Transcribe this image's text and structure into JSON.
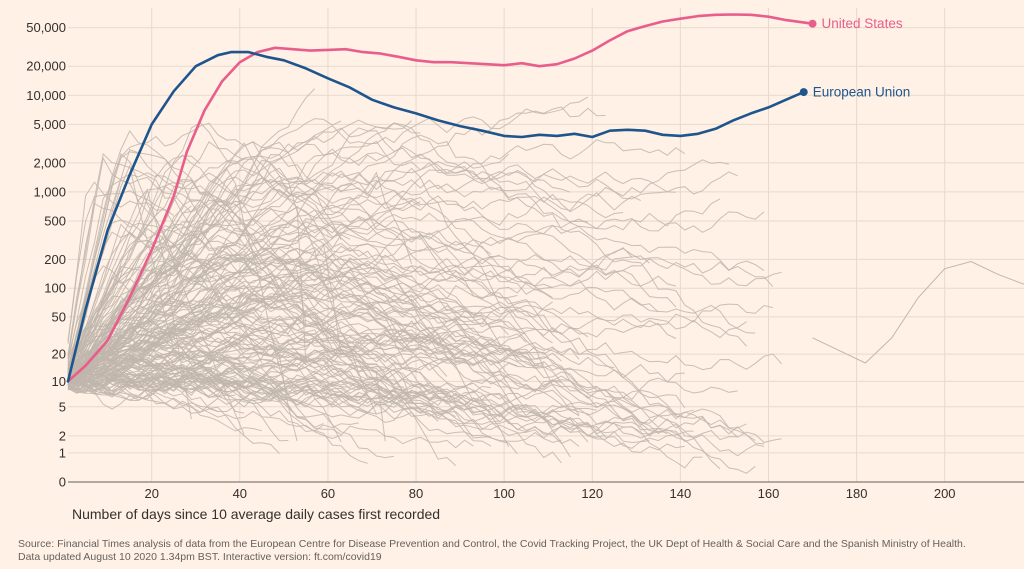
{
  "chart_data": {
    "type": "line",
    "title": "",
    "xlabel": "Number of days since 10 average daily cases first recorded",
    "ylabel": "",
    "y_scale": "log",
    "xlim": [
      1,
      218
    ],
    "ylim": [
      0,
      80000
    ],
    "x_ticks": [
      20,
      40,
      60,
      80,
      100,
      120,
      140,
      160,
      180,
      200
    ],
    "y_ticks": [
      0,
      1,
      2,
      5,
      10,
      20,
      50,
      100,
      200,
      500,
      1000,
      2000,
      5000,
      10000,
      20000,
      50000
    ],
    "y_tick_labels": [
      "0",
      "1",
      "2",
      "5",
      "10",
      "20",
      "50",
      "100",
      "200",
      "500",
      "1,000",
      "2,000",
      "5,000",
      "10,000",
      "20,000",
      "50,000"
    ],
    "series": [
      {
        "name": "United States",
        "color": "#e95d8c",
        "x": [
          1,
          5,
          10,
          15,
          20,
          25,
          28,
          32,
          36,
          40,
          44,
          48,
          52,
          56,
          60,
          64,
          68,
          72,
          76,
          80,
          84,
          88,
          92,
          96,
          100,
          104,
          108,
          112,
          116,
          120,
          124,
          128,
          132,
          136,
          140,
          144,
          148,
          152,
          156,
          160,
          164,
          170
        ],
        "values": [
          10,
          15,
          28,
          80,
          250,
          900,
          2600,
          7000,
          14000,
          22000,
          28000,
          31000,
          30000,
          29000,
          29500,
          30000,
          28000,
          27000,
          25000,
          23000,
          22000,
          22000,
          21500,
          21000,
          20500,
          21500,
          20000,
          21000,
          24000,
          29000,
          37000,
          46000,
          52000,
          58000,
          62000,
          66000,
          68000,
          68500,
          68000,
          65000,
          60000,
          55000
        ]
      },
      {
        "name": "European Union",
        "color": "#1e558c",
        "x": [
          1,
          5,
          10,
          15,
          20,
          25,
          30,
          35,
          38,
          42,
          46,
          50,
          55,
          60,
          65,
          70,
          75,
          80,
          85,
          90,
          95,
          100,
          104,
          108,
          112,
          116,
          120,
          124,
          128,
          132,
          136,
          140,
          144,
          148,
          152,
          156,
          160,
          164,
          168
        ],
        "values": [
          10,
          60,
          400,
          1500,
          5000,
          11000,
          20000,
          26000,
          28000,
          28000,
          25000,
          23000,
          19000,
          15000,
          12000,
          9000,
          7500,
          6500,
          5500,
          4800,
          4300,
          3800,
          3700,
          3900,
          3800,
          4000,
          3700,
          4300,
          4400,
          4300,
          3900,
          3800,
          4000,
          4500,
          5500,
          6500,
          7500,
          9000,
          10800
        ]
      }
    ],
    "background_series_count": 180,
    "background_color": "#c0b6ad"
  },
  "source": {
    "line1": "Source: Financial Times analysis of data from the European Centre for Disease Prevention and Control, the Covid Tracking Project, the UK Dept of Health & Social Care and the Spanish Ministry of Health.",
    "line2": "Data updated August 10 2020 1.34pm BST. Interactive version: ft.com/covid19"
  }
}
